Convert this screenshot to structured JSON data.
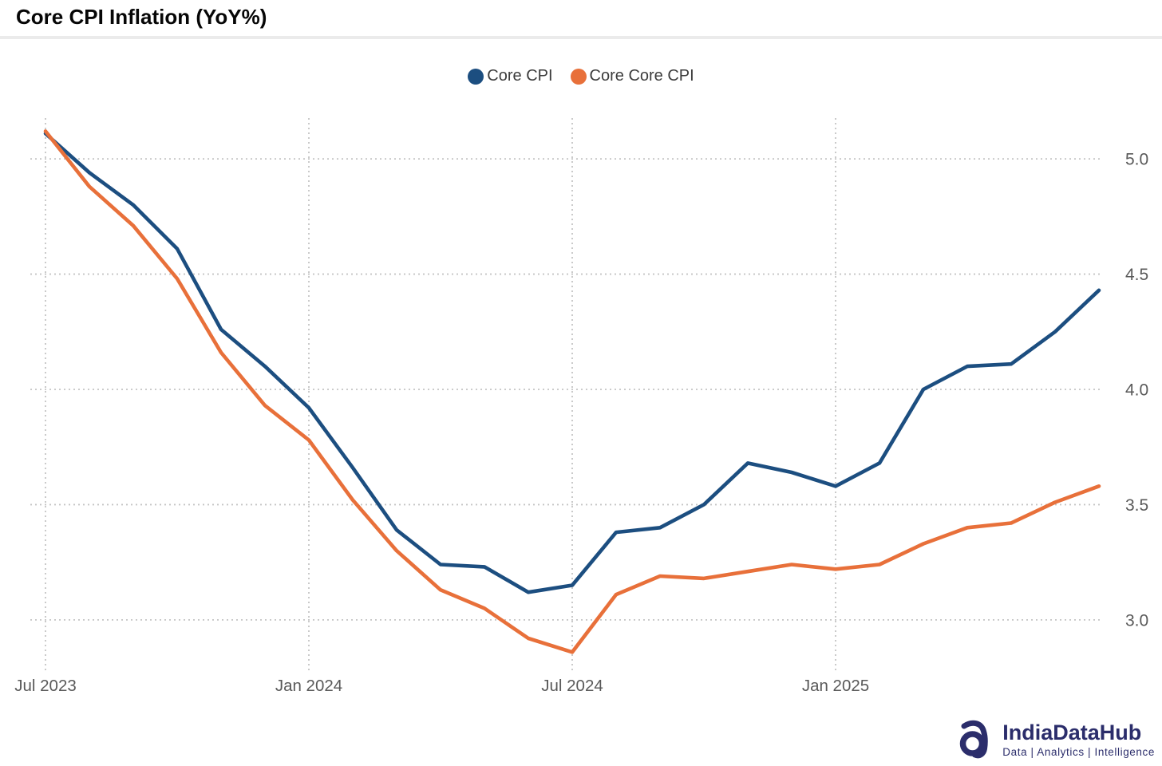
{
  "title": "Core CPI Inflation (YoY%)",
  "legend": [
    {
      "label": "Core CPI",
      "color": "#1C4E80"
    },
    {
      "label": "Core Core CPI",
      "color": "#E8703A"
    }
  ],
  "chart_data": {
    "type": "line",
    "title": "Core CPI Inflation (YoY%)",
    "x_months": [
      "Jul 2023",
      "Aug 2023",
      "Sep 2023",
      "Oct 2023",
      "Nov 2023",
      "Dec 2023",
      "Jan 2024",
      "Feb 2024",
      "Mar 2024",
      "Apr 2024",
      "May 2024",
      "Jun 2024",
      "Jul 2024",
      "Aug 2024",
      "Sep 2024",
      "Oct 2024",
      "Nov 2024",
      "Dec 2024",
      "Jan 2025",
      "Feb 2025",
      "Mar 2025",
      "Apr 2025",
      "May 2025",
      "Jun 2025",
      "Jul 2025"
    ],
    "series": [
      {
        "name": "Core CPI",
        "color": "#1C4E80",
        "values": [
          5.11,
          4.94,
          4.8,
          4.61,
          4.26,
          4.1,
          3.92,
          3.66,
          3.39,
          3.24,
          3.23,
          3.12,
          3.15,
          3.38,
          3.4,
          3.5,
          3.68,
          3.64,
          3.58,
          3.68,
          4.0,
          4.1,
          4.11,
          4.25,
          4.43
        ]
      },
      {
        "name": "Core Core CPI",
        "color": "#E8703A",
        "values": [
          5.12,
          4.88,
          4.71,
          4.48,
          4.16,
          3.93,
          3.78,
          3.52,
          3.3,
          3.13,
          3.05,
          2.92,
          2.86,
          3.11,
          3.19,
          3.18,
          3.21,
          3.24,
          3.22,
          3.24,
          3.33,
          3.4,
          3.42,
          3.51,
          3.58
        ]
      }
    ],
    "xticks": [
      {
        "index": 0,
        "label": "Jul 2023"
      },
      {
        "index": 6,
        "label": "Jan 2024"
      },
      {
        "index": 12,
        "label": "Jul 2024"
      },
      {
        "index": 18,
        "label": "Jan 2025"
      }
    ],
    "yticks": [
      {
        "value": 5.0,
        "label": "5.0"
      },
      {
        "value": 4.5,
        "label": "4.5"
      },
      {
        "value": 4.0,
        "label": "4.0"
      },
      {
        "value": 3.5,
        "label": "3.5"
      },
      {
        "value": 3.0,
        "label": "3.0"
      }
    ],
    "ylim": [
      2.816,
      5.17
    ],
    "grid": "dotted",
    "legend_position": "top-center",
    "yaxis_side": "right"
  },
  "colors": {
    "gridline": "#c4c4c4",
    "axis_text": "#595959",
    "legend_text": "#3c3c3c",
    "divider": "#ebebeb",
    "background": "#ffffff",
    "brand_navy": "#2b2d6b"
  },
  "footer": {
    "brand": "IndiaDataHub",
    "tagline": "Data | Analytics | Intelligence"
  }
}
